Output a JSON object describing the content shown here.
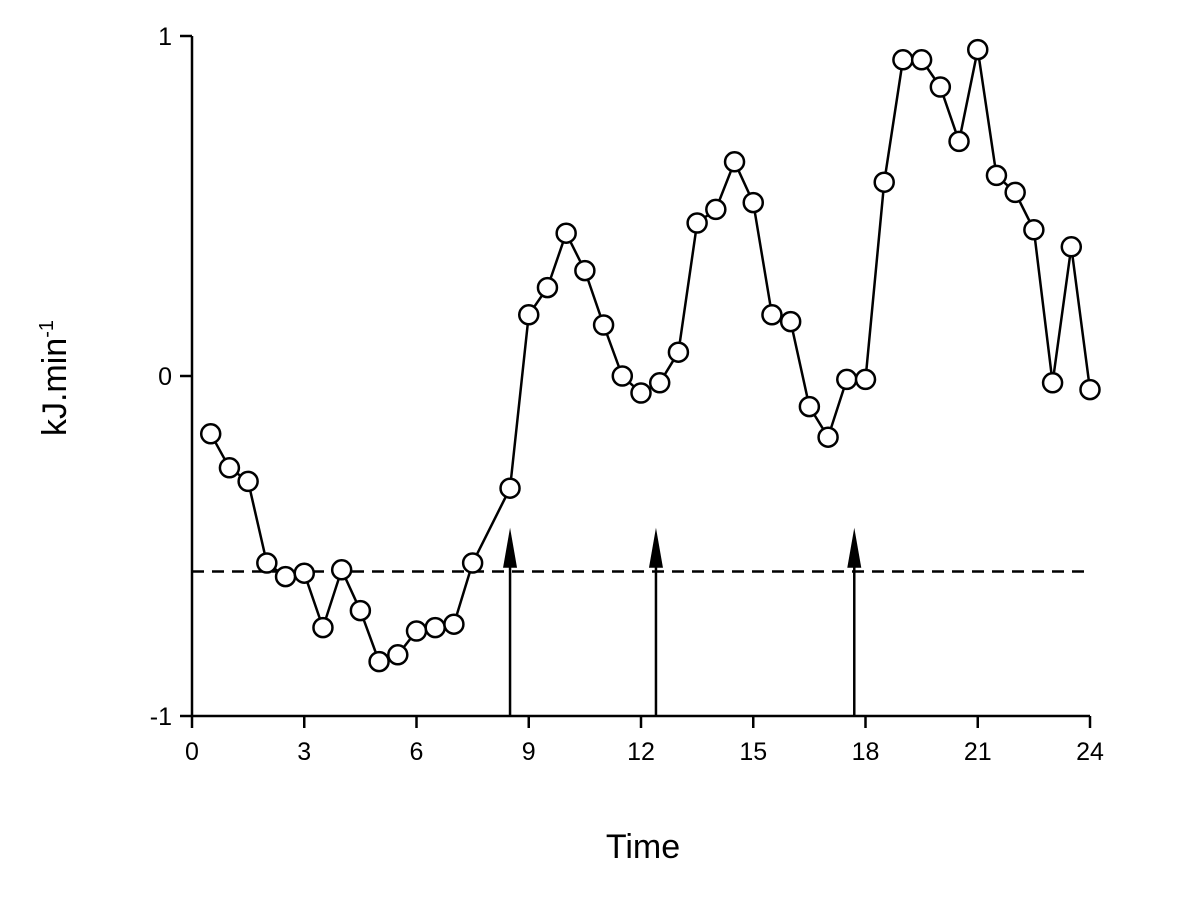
{
  "chart_data": {
    "type": "line",
    "xlabel": "Time",
    "ylabel": "kJ.min",
    "ylabel_superscript": "-1",
    "xlim": [
      0,
      24
    ],
    "ylim": [
      -1,
      1
    ],
    "xticks": [
      0,
      3,
      6,
      9,
      12,
      15,
      18,
      21,
      24
    ],
    "yticks": [
      -1,
      0,
      1
    ],
    "grid": false,
    "legend": "none",
    "series": [
      {
        "marker": "open-circle",
        "color": "#000000",
        "x": [
          0.5,
          1.0,
          1.5,
          2.0,
          2.5,
          3.0,
          3.5,
          4.0,
          4.5,
          5.0,
          5.5,
          6.0,
          6.5,
          7.0,
          7.5,
          8.5,
          9.0,
          9.5,
          10.0,
          10.5,
          11.0,
          11.5,
          12.0,
          12.5,
          13.0,
          13.5,
          14.0,
          14.5,
          15.0,
          15.5,
          16.0,
          16.5,
          17.0,
          17.5,
          18.0,
          18.5,
          19.0,
          19.5,
          20.0,
          20.5,
          21.0,
          21.5,
          22.0,
          22.5,
          23.0,
          23.5,
          24.0
        ],
        "y": [
          -0.17,
          -0.27,
          -0.31,
          -0.55,
          -0.59,
          -0.58,
          -0.74,
          -0.57,
          -0.69,
          -0.84,
          -0.82,
          -0.75,
          -0.74,
          -0.73,
          -0.55,
          -0.33,
          0.18,
          0.26,
          0.42,
          0.31,
          0.15,
          0.0,
          -0.05,
          -0.02,
          0.07,
          0.45,
          0.49,
          0.63,
          0.51,
          0.18,
          0.16,
          -0.09,
          -0.18,
          -0.01,
          -0.01,
          0.57,
          0.93,
          0.93,
          0.85,
          0.69,
          0.96,
          0.59,
          0.54,
          0.43,
          -0.02,
          0.38,
          -0.04
        ]
      }
    ],
    "reference_line": {
      "y": -0.575,
      "style": "dashed",
      "x_from": 0,
      "x_to": 24
    },
    "arrows": [
      {
        "x": 8.5,
        "y_from": -1,
        "y_to": -0.47
      },
      {
        "x": 12.4,
        "y_from": -1,
        "y_to": -0.47
      },
      {
        "x": 17.7,
        "y_from": -1,
        "y_to": -0.47
      }
    ]
  }
}
